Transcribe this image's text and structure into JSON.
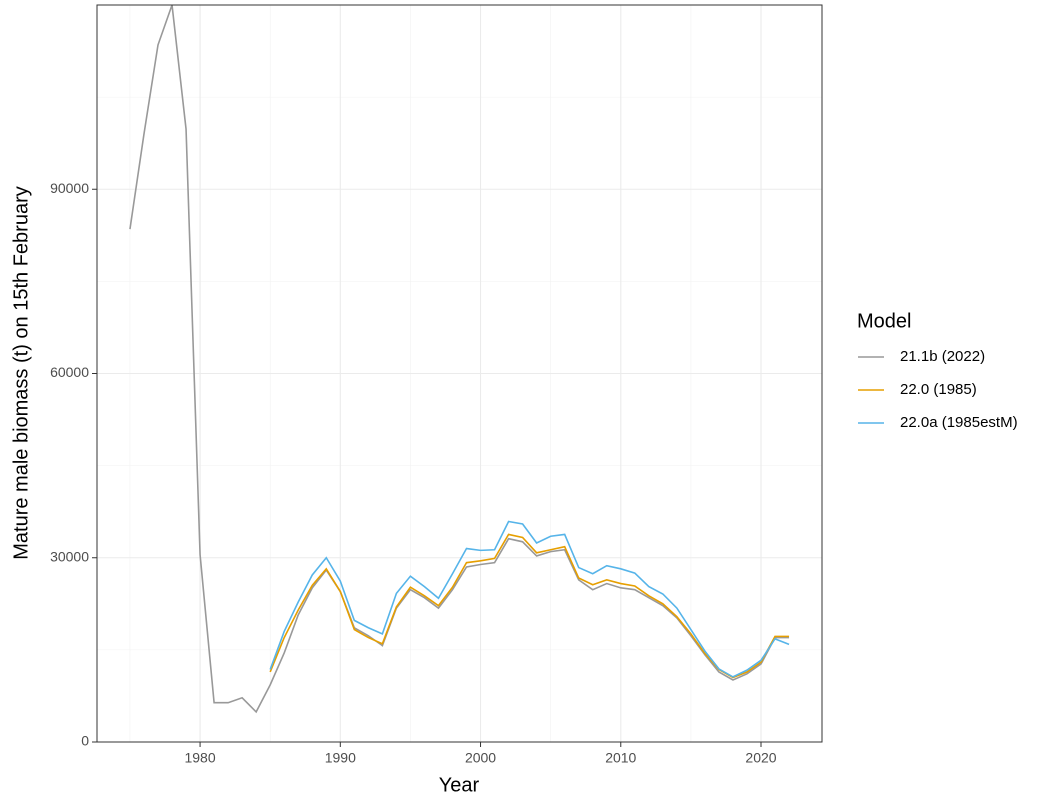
{
  "chart_data": {
    "type": "line",
    "x_label": "Year",
    "y_label": "Mature male biomass (t) on 15th February",
    "legend_title": "Model",
    "legend_position": "right",
    "grid": true,
    "xlim": [
      1972.65,
      2024.35
    ],
    "ylim": [
      0,
      120000
    ],
    "xticks": [
      1980,
      1990,
      2000,
      2010,
      2020
    ],
    "yticks": [
      0,
      30000,
      60000,
      90000
    ],
    "x_minor_ticks": [
      1975,
      1985,
      1995,
      2005,
      2015
    ],
    "y_minor_ticks": [
      15000,
      45000,
      75000,
      105000
    ],
    "x": [
      1975,
      1976,
      1977,
      1978,
      1979,
      1980,
      1981,
      1982,
      1983,
      1984,
      1985,
      1986,
      1987,
      1988,
      1989,
      1990,
      1991,
      1992,
      1993,
      1994,
      1995,
      1996,
      1997,
      1998,
      1999,
      2000,
      2001,
      2002,
      2003,
      2004,
      2005,
      2006,
      2007,
      2008,
      2009,
      2010,
      2011,
      2012,
      2013,
      2014,
      2015,
      2016,
      2017,
      2018,
      2019,
      2020,
      2021,
      2022
    ],
    "series": [
      {
        "name": "21.1b (2022)",
        "color": "#999999",
        "values": [
          83500,
          99000,
          113500,
          120000,
          99800,
          30500,
          6400,
          6400,
          7200,
          4900,
          9300,
          14500,
          20700,
          25100,
          28000,
          24500,
          18600,
          17300,
          15700,
          21800,
          24800,
          23500,
          21800,
          24800,
          28500,
          28900,
          29200,
          33100,
          32600,
          30300,
          31000,
          31300,
          26400,
          24800,
          25800,
          25100,
          24800,
          23500,
          22200,
          20200,
          17300,
          14200,
          11400,
          10100,
          11100,
          12700,
          17000,
          17000
        ]
      },
      {
        "name": "22.0 (1985)",
        "color": "#e69f00",
        "values": [
          null,
          null,
          null,
          null,
          null,
          null,
          null,
          null,
          null,
          null,
          11400,
          17000,
          21500,
          25500,
          28200,
          24500,
          18300,
          17000,
          16000,
          22000,
          25200,
          23800,
          22200,
          25200,
          29200,
          29500,
          29900,
          33800,
          33300,
          30800,
          31300,
          31800,
          26700,
          25600,
          26400,
          25800,
          25400,
          23800,
          22500,
          20400,
          17600,
          14400,
          11800,
          10500,
          11400,
          13000,
          17200,
          17200
        ]
      },
      {
        "name": "22.0a (1985estM)",
        "color": "#56b4e9",
        "values": [
          null,
          null,
          null,
          null,
          null,
          null,
          null,
          null,
          null,
          null,
          11800,
          18000,
          22800,
          27200,
          30000,
          26200,
          19800,
          18600,
          17600,
          24200,
          27000,
          25300,
          23400,
          27400,
          31500,
          31200,
          31300,
          35900,
          35500,
          32400,
          33500,
          33800,
          28400,
          27400,
          28700,
          28200,
          27500,
          25300,
          24100,
          21800,
          18300,
          14800,
          11900,
          10600,
          11700,
          13300,
          16800,
          15900
        ]
      }
    ]
  }
}
